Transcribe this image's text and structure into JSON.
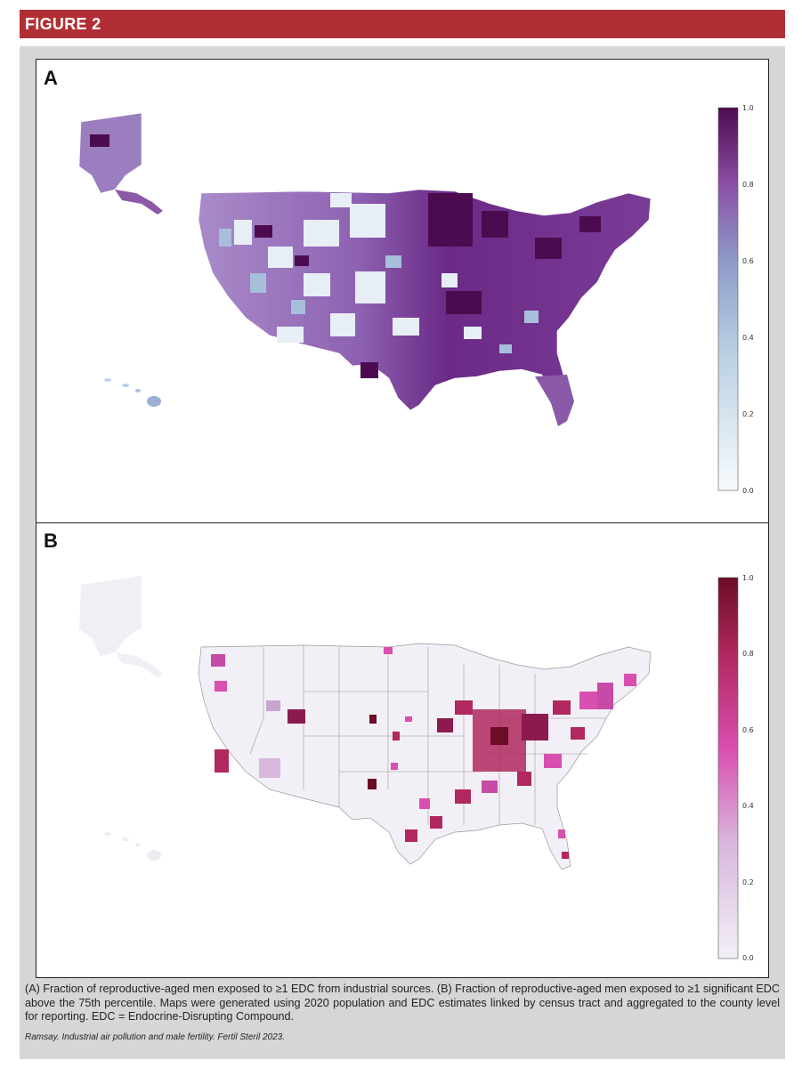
{
  "header": {
    "title": "FIGURE 2"
  },
  "panels": [
    {
      "letter": "A",
      "colorbar": {
        "ticks": [
          "1.0",
          "0.8",
          "0.6",
          "0.4",
          "0.2",
          "0.0"
        ],
        "low_color": "#f7fbfd",
        "mid_color": "#8e9bc8",
        "high_color": "#4d0b4f"
      }
    },
    {
      "letter": "B",
      "colorbar": {
        "ticks": [
          "1.0",
          "0.8",
          "0.6",
          "0.4",
          "0.2",
          "0.0"
        ],
        "low_color": "#f3f0f7",
        "mid_color": "#d94fb0",
        "high_color": "#6b0d26"
      }
    }
  ],
  "caption": "(A) Fraction of reproductive-aged men exposed to ≥1 EDC from industrial sources. (B) Fraction of reproductive-aged men exposed to ≥1 significant EDC above the 75th percentile. Maps were generated using 2020 population and EDC estimates linked by census tract and aggregated to the county level for reporting. EDC = Endocrine-Disrupting Compound.",
  "citation": "Ramsay. Industrial air pollution and male fertility. Fertil Steril 2023."
}
